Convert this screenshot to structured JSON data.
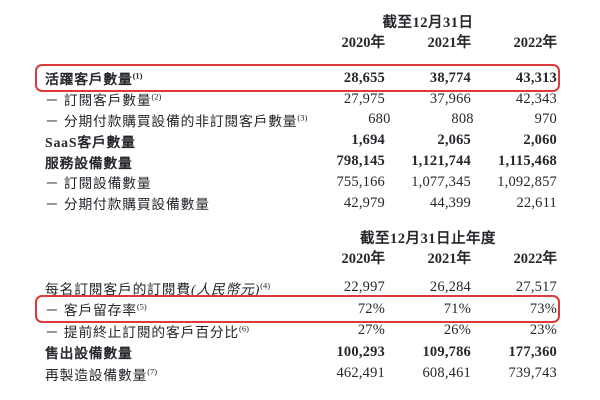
{
  "page": {
    "background_color": "#ffffff",
    "text_color": "#26272c",
    "highlight_color": "#dd3a3c"
  },
  "table1": {
    "period_header": "截至12月31日",
    "years": [
      "2020年",
      "2021年",
      "2022年"
    ],
    "rows": [
      {
        "label": "活躍客戶數量",
        "sup": "(1)",
        "values": [
          "28,655",
          "38,774",
          "43,313"
        ],
        "bold": true,
        "highlighted": true
      },
      {
        "label": "－ 訂閱客戶數量",
        "sup": "(2)",
        "values": [
          "27,975",
          "37,966",
          "42,343"
        ],
        "bold": false,
        "highlighted": false
      },
      {
        "label": "－ 分期付款購買設備的非訂閱客戶數量",
        "sup": "(3)",
        "values": [
          "680",
          "808",
          "970"
        ],
        "bold": false,
        "highlighted": false
      },
      {
        "label": "SaaS客戶數量",
        "sup": "",
        "values": [
          "1,694",
          "2,065",
          "2,060"
        ],
        "bold": true,
        "highlighted": false
      },
      {
        "label": "服務設備數量",
        "sup": "",
        "values": [
          "798,145",
          "1,121,744",
          "1,115,468"
        ],
        "bold": true,
        "highlighted": false
      },
      {
        "label": "－ 訂閱設備數量",
        "sup": "",
        "values": [
          "755,166",
          "1,077,345",
          "1,092,857"
        ],
        "bold": false,
        "highlighted": false
      },
      {
        "label": "－ 分期付款購買設備數量",
        "sup": "",
        "values": [
          "42,979",
          "44,399",
          "22,611"
        ],
        "bold": false,
        "highlighted": false
      }
    ]
  },
  "table2": {
    "period_header": "截至12月31日止年度",
    "years": [
      "2020年",
      "2021年",
      "2022年"
    ],
    "rows": [
      {
        "label": "每名訂閱客戶的訂閱費",
        "italic": "(人民幣元)",
        "sup": "(4)",
        "values": [
          "22,997",
          "26,284",
          "27,517"
        ],
        "bold": false,
        "highlighted": false
      },
      {
        "label": "－ 客戶留存率",
        "sup": "(5)",
        "values": [
          "72%",
          "71%",
          "73%"
        ],
        "bold": false,
        "highlighted": true
      },
      {
        "label": "－ 提前終止訂閱的客戶百分比",
        "sup": "(6)",
        "values": [
          "27%",
          "26%",
          "23%"
        ],
        "bold": false,
        "highlighted": false
      },
      {
        "label": "售出設備數量",
        "sup": "",
        "values": [
          "100,293",
          "109,786",
          "177,360"
        ],
        "bold": true,
        "highlighted": false
      },
      {
        "label": "再製造設備數量",
        "sup": "(7)",
        "values": [
          "462,491",
          "608,461",
          "739,743"
        ],
        "bold": false,
        "highlighted": false
      }
    ]
  }
}
